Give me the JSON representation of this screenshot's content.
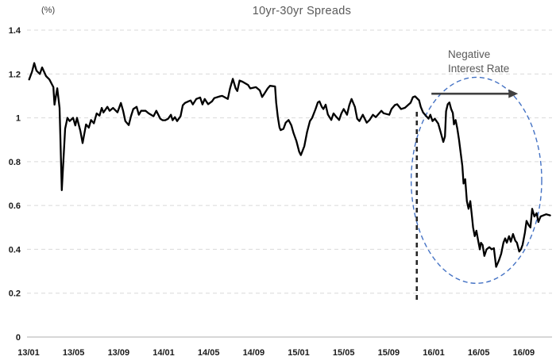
{
  "chart_data": {
    "type": "line",
    "title": "10yr-30yr Spreads",
    "y_unit_label": "(%)",
    "x_axis": {
      "tick_labels": [
        "13/01",
        "13/05",
        "13/09",
        "14/01",
        "14/05",
        "14/09",
        "15/01",
        "15/05",
        "15/09",
        "16/01",
        "16/05",
        "16/09"
      ],
      "tick_months": [
        0,
        4,
        8,
        12,
        16,
        20,
        24,
        28,
        32,
        36,
        40,
        44
      ],
      "x_unit": "months since 2013-01"
    },
    "y_axis": {
      "tick_labels": [
        "0",
        "0.2",
        "0.4",
        "0.6",
        "0.8",
        "1",
        "1.2",
        "1.4"
      ],
      "tick_values": [
        0,
        0.2,
        0.4,
        0.6,
        0.8,
        1,
        1.2,
        1.4
      ],
      "range": [
        0,
        1.4
      ]
    },
    "grid": "horizontal-dashed",
    "legend": "none",
    "series": [
      {
        "name": "10yr-30yr spread",
        "color": "#000000",
        "points": [
          [
            0.05,
            1.175
          ],
          [
            0.3,
            1.21
          ],
          [
            0.5,
            1.25
          ],
          [
            0.7,
            1.215
          ],
          [
            1.0,
            1.2
          ],
          [
            1.2,
            1.23
          ],
          [
            1.55,
            1.19
          ],
          [
            1.85,
            1.175
          ],
          [
            2.2,
            1.14
          ],
          [
            2.3,
            1.06
          ],
          [
            2.55,
            1.135
          ],
          [
            2.75,
            1.045
          ],
          [
            2.95,
            0.67
          ],
          [
            3.25,
            0.95
          ],
          [
            3.45,
            1.0
          ],
          [
            3.65,
            0.985
          ],
          [
            3.95,
            1.0
          ],
          [
            4.15,
            0.965
          ],
          [
            4.3,
            1.0
          ],
          [
            4.6,
            0.94
          ],
          [
            4.8,
            0.885
          ],
          [
            5.1,
            0.97
          ],
          [
            5.35,
            0.955
          ],
          [
            5.55,
            0.99
          ],
          [
            5.8,
            0.975
          ],
          [
            6.05,
            1.02
          ],
          [
            6.3,
            1.01
          ],
          [
            6.5,
            1.045
          ],
          [
            6.65,
            1.024
          ],
          [
            7.0,
            1.05
          ],
          [
            7.2,
            1.032
          ],
          [
            7.5,
            1.045
          ],
          [
            7.9,
            1.025
          ],
          [
            8.2,
            1.068
          ],
          [
            8.4,
            1.032
          ],
          [
            8.6,
            0.985
          ],
          [
            8.9,
            0.967
          ],
          [
            9.1,
            1.007
          ],
          [
            9.3,
            1.04
          ],
          [
            9.6,
            1.05
          ],
          [
            9.8,
            1.014
          ],
          [
            10.0,
            1.032
          ],
          [
            10.4,
            1.032
          ],
          [
            10.65,
            1.021
          ],
          [
            11.1,
            1.007
          ],
          [
            11.35,
            1.032
          ],
          [
            11.7,
            0.996
          ],
          [
            11.9,
            0.989
          ],
          [
            12.15,
            0.989
          ],
          [
            12.4,
            0.996
          ],
          [
            12.65,
            1.014
          ],
          [
            12.8,
            0.989
          ],
          [
            13.0,
            1.003
          ],
          [
            13.2,
            0.985
          ],
          [
            13.5,
            1.007
          ],
          [
            13.7,
            1.057
          ],
          [
            13.9,
            1.068
          ],
          [
            14.2,
            1.075
          ],
          [
            14.4,
            1.079
          ],
          [
            14.6,
            1.061
          ],
          [
            14.9,
            1.086
          ],
          [
            15.25,
            1.093
          ],
          [
            15.45,
            1.061
          ],
          [
            15.65,
            1.086
          ],
          [
            15.95,
            1.062
          ],
          [
            16.3,
            1.075
          ],
          [
            16.5,
            1.09
          ],
          [
            17.0,
            1.098
          ],
          [
            17.2,
            1.1
          ],
          [
            17.7,
            1.086
          ],
          [
            17.9,
            1.134
          ],
          [
            18.15,
            1.178
          ],
          [
            18.4,
            1.134
          ],
          [
            18.55,
            1.122
          ],
          [
            18.75,
            1.17
          ],
          [
            19.0,
            1.165
          ],
          [
            19.5,
            1.15
          ],
          [
            19.7,
            1.134
          ],
          [
            20.2,
            1.14
          ],
          [
            20.55,
            1.125
          ],
          [
            20.75,
            1.095
          ],
          [
            20.95,
            1.11
          ],
          [
            21.25,
            1.134
          ],
          [
            21.45,
            1.146
          ],
          [
            21.9,
            1.143
          ],
          [
            22.0,
            1.07
          ],
          [
            22.15,
            1.003
          ],
          [
            22.3,
            0.956
          ],
          [
            22.4,
            0.944
          ],
          [
            22.65,
            0.95
          ],
          [
            22.85,
            0.978
          ],
          [
            23.1,
            0.99
          ],
          [
            23.35,
            0.966
          ],
          [
            23.55,
            0.93
          ],
          [
            23.8,
            0.894
          ],
          [
            24.05,
            0.845
          ],
          [
            24.2,
            0.83
          ],
          [
            24.5,
            0.87
          ],
          [
            24.75,
            0.935
          ],
          [
            25.0,
            0.985
          ],
          [
            25.2,
            1.0
          ],
          [
            25.5,
            1.04
          ],
          [
            25.7,
            1.07
          ],
          [
            25.85,
            1.075
          ],
          [
            26.05,
            1.05
          ],
          [
            26.2,
            1.04
          ],
          [
            26.4,
            1.06
          ],
          [
            26.6,
            1.015
          ],
          [
            26.9,
            0.99
          ],
          [
            27.1,
            1.02
          ],
          [
            27.3,
            1.007
          ],
          [
            27.6,
            0.99
          ],
          [
            27.8,
            1.02
          ],
          [
            28.0,
            1.04
          ],
          [
            28.3,
            1.014
          ],
          [
            28.5,
            1.058
          ],
          [
            28.7,
            1.086
          ],
          [
            29.0,
            1.05
          ],
          [
            29.2,
            0.996
          ],
          [
            29.4,
            0.985
          ],
          [
            29.7,
            1.014
          ],
          [
            30.05,
            0.978
          ],
          [
            30.3,
            0.99
          ],
          [
            30.6,
            1.014
          ],
          [
            30.85,
            1.003
          ],
          [
            31.35,
            1.032
          ],
          [
            31.55,
            1.021
          ],
          [
            32.05,
            1.014
          ],
          [
            32.25,
            1.04
          ],
          [
            32.55,
            1.058
          ],
          [
            32.75,
            1.062
          ],
          [
            33.1,
            1.04
          ],
          [
            33.45,
            1.046
          ],
          [
            33.95,
            1.069
          ],
          [
            34.15,
            1.094
          ],
          [
            34.35,
            1.098
          ],
          [
            34.7,
            1.08
          ],
          [
            34.85,
            1.05
          ],
          [
            35.05,
            1.025
          ],
          [
            35.35,
            1.007
          ],
          [
            35.55,
            0.996
          ],
          [
            35.7,
            1.014
          ],
          [
            35.9,
            0.985
          ],
          [
            36.1,
            0.996
          ],
          [
            36.4,
            0.974
          ],
          [
            36.6,
            0.938
          ],
          [
            36.85,
            0.89
          ],
          [
            37.0,
            0.915
          ],
          [
            37.1,
            1.03
          ],
          [
            37.25,
            1.062
          ],
          [
            37.4,
            1.07
          ],
          [
            37.55,
            1.04
          ],
          [
            37.7,
            1.022
          ],
          [
            37.8,
            0.97
          ],
          [
            37.95,
            0.99
          ],
          [
            38.1,
            0.95
          ],
          [
            38.25,
            0.9
          ],
          [
            38.4,
            0.84
          ],
          [
            38.55,
            0.78
          ],
          [
            38.65,
            0.7
          ],
          [
            38.8,
            0.72
          ],
          [
            38.95,
            0.62
          ],
          [
            39.1,
            0.585
          ],
          [
            39.25,
            0.62
          ],
          [
            39.4,
            0.55
          ],
          [
            39.5,
            0.5
          ],
          [
            39.65,
            0.46
          ],
          [
            39.8,
            0.485
          ],
          [
            39.95,
            0.44
          ],
          [
            40.1,
            0.4
          ],
          [
            40.2,
            0.43
          ],
          [
            40.35,
            0.42
          ],
          [
            40.5,
            0.37
          ],
          [
            40.7,
            0.4
          ],
          [
            40.95,
            0.41
          ],
          [
            41.15,
            0.4
          ],
          [
            41.35,
            0.405
          ],
          [
            41.55,
            0.32
          ],
          [
            41.8,
            0.35
          ],
          [
            42.0,
            0.38
          ],
          [
            42.2,
            0.43
          ],
          [
            42.35,
            0.45
          ],
          [
            42.5,
            0.43
          ],
          [
            42.7,
            0.46
          ],
          [
            42.85,
            0.435
          ],
          [
            43.05,
            0.47
          ],
          [
            43.25,
            0.44
          ],
          [
            43.4,
            0.43
          ],
          [
            43.6,
            0.39
          ],
          [
            43.75,
            0.4
          ],
          [
            43.9,
            0.42
          ],
          [
            44.1,
            0.475
          ],
          [
            44.25,
            0.53
          ],
          [
            44.45,
            0.51
          ],
          [
            44.6,
            0.5
          ],
          [
            44.75,
            0.585
          ],
          [
            44.95,
            0.55
          ],
          [
            45.15,
            0.565
          ],
          [
            45.3,
            0.525
          ],
          [
            45.5,
            0.55
          ],
          [
            45.75,
            0.555
          ],
          [
            46.0,
            0.56
          ],
          [
            46.35,
            0.555
          ]
        ]
      }
    ],
    "annotations": {
      "note": {
        "lines": [
          "Negative",
          "Interest Rate"
        ],
        "color": "#595959"
      },
      "arrow": {
        "direction": "right",
        "value": 1.11,
        "from_month": 35.8,
        "to_month": 43.5,
        "color": "#404040"
      },
      "event_line": {
        "style": "dashed-vertical",
        "month": 34.5,
        "from_value": 0.17,
        "to_value": 1.045,
        "color": "#262626"
      },
      "highlight_ellipse": {
        "style": "dashed",
        "center_month": 39.8,
        "center_value": 0.715,
        "radius_months": 5.8,
        "radius_value": 0.47,
        "color": "#4472c4"
      }
    },
    "colors": {
      "grid": "#d9d9d9",
      "axis_baseline": "#bfbfbf",
      "tick_text": "#1a1a1a",
      "title_text": "#595959"
    }
  }
}
